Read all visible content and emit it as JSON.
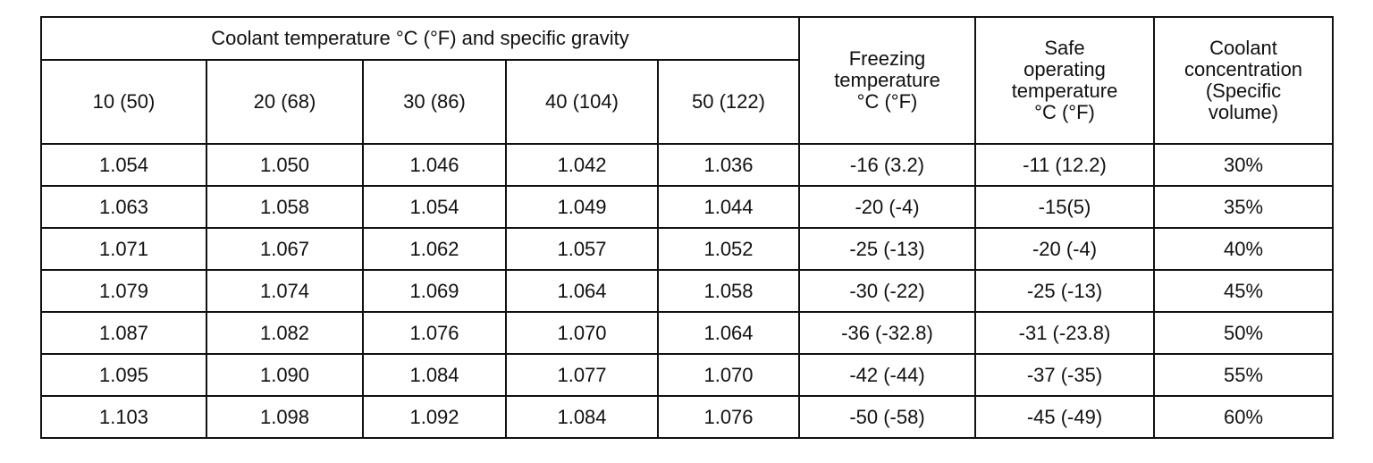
{
  "table": {
    "group_header": "Coolant temperature °C (°F) and specific gravity",
    "temp_columns": [
      "10 (50)",
      "20 (68)",
      "30 (86)",
      "40 (104)",
      "50 (122)"
    ],
    "side_columns": [
      [
        "Freezing",
        "temperature",
        "°C (°F)"
      ],
      [
        "Safe",
        "operating",
        "temperature",
        "°C (°F)"
      ],
      [
        "Coolant",
        "concentration",
        "(Specific",
        "volume)"
      ]
    ],
    "rows": [
      [
        "1.054",
        "1.050",
        "1.046",
        "1.042",
        "1.036",
        "-16 (3.2)",
        "-11 (12.2)",
        "30%"
      ],
      [
        "1.063",
        "1.058",
        "1.054",
        "1.049",
        "1.044",
        "-20 (-4)",
        "-15(5)",
        "35%"
      ],
      [
        "1.071",
        "1.067",
        "1.062",
        "1.057",
        "1.052",
        "-25 (-13)",
        "-20 (-4)",
        "40%"
      ],
      [
        "1.079",
        "1.074",
        "1.069",
        "1.064",
        "1.058",
        "-30 (-22)",
        "-25 (-13)",
        "45%"
      ],
      [
        "1.087",
        "1.082",
        "1.076",
        "1.070",
        "1.064",
        "-36 (-32.8)",
        "-31 (-23.8)",
        "50%"
      ],
      [
        "1.095",
        "1.090",
        "1.084",
        "1.077",
        "1.070",
        "-42 (-44)",
        "-37 (-35)",
        "55%"
      ],
      [
        "1.103",
        "1.098",
        "1.092",
        "1.084",
        "1.076",
        "-50 (-58)",
        "-45 (-49)",
        "60%"
      ]
    ]
  }
}
